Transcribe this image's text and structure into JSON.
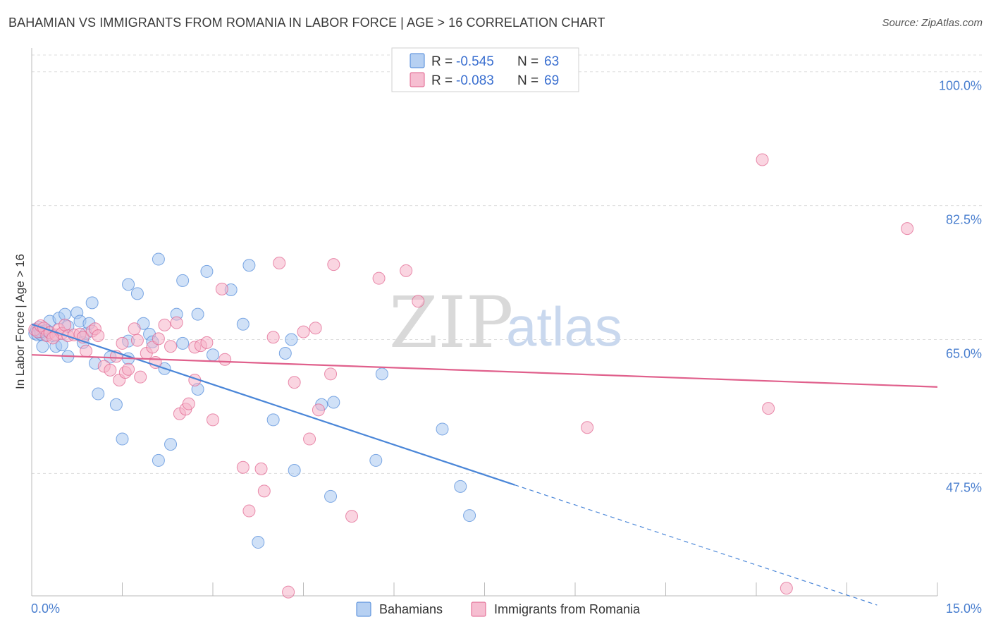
{
  "header": {
    "title": "BAHAMIAN VS IMMIGRANTS FROM ROMANIA IN LABOR FORCE | AGE > 16 CORRELATION CHART",
    "source": "Source: ZipAtlas.com"
  },
  "watermark": {
    "zip": "ZIP",
    "atlas": "atlas"
  },
  "legend_top": {
    "rows": [
      {
        "r_label": "R = ",
        "r_value": "-0.545",
        "n_label": "N = ",
        "n_value": "63",
        "color": "#a9c8f0"
      },
      {
        "r_label": "R = ",
        "r_value": "-0.083",
        "n_label": "N = ",
        "n_value": "69",
        "color": "#f5b3c9"
      }
    ]
  },
  "legend_bottom": {
    "items": [
      {
        "label": "Bahamians",
        "color": "#a9c8f0"
      },
      {
        "label": "Immigrants from Romania",
        "color": "#f5b3c9"
      }
    ]
  },
  "chart_data": {
    "type": "scatter",
    "title": "BAHAMIAN VS IMMIGRANTS FROM ROMANIA IN LABOR FORCE | AGE > 16 CORRELATION CHART",
    "xlabel": "",
    "ylabel": "In Labor Force | Age > 16",
    "xlim": [
      0,
      15
    ],
    "ylim": [
      31.5,
      102
    ],
    "x_tick_labels": [
      "0.0%",
      "15.0%"
    ],
    "y_ticks": [
      47.5,
      65.0,
      82.5,
      100.0
    ],
    "y_tick_labels": [
      "47.5%",
      "65.0%",
      "82.5%",
      "100.0%"
    ],
    "grid": true,
    "legend_position": "top-center",
    "series": [
      {
        "name": "Bahamians",
        "color": "#4a86d8",
        "fill": "#a9c8f0",
        "r": -0.545,
        "n": 63,
        "trend": {
          "x0": 0.0,
          "y0": 67.0,
          "x1": 8.0,
          "y1": 46.0,
          "dash_to_x": 14.0,
          "dash_to_y": 30.3
        },
        "points": [
          [
            0.05,
            65.8
          ],
          [
            0.08,
            66.3
          ],
          [
            0.1,
            65.6
          ],
          [
            0.12,
            66.6
          ],
          [
            0.15,
            65.7
          ],
          [
            0.18,
            64.1
          ],
          [
            0.2,
            66.1
          ],
          [
            0.25,
            65.6
          ],
          [
            0.3,
            67.4
          ],
          [
            0.35,
            65.5
          ],
          [
            0.4,
            64.1
          ],
          [
            0.45,
            67.8
          ],
          [
            0.5,
            64.3
          ],
          [
            0.55,
            68.3
          ],
          [
            0.6,
            62.8
          ],
          [
            0.6,
            66.7
          ],
          [
            0.75,
            68.5
          ],
          [
            0.8,
            67.4
          ],
          [
            0.85,
            64.6
          ],
          [
            0.9,
            65.8
          ],
          [
            0.95,
            67.1
          ],
          [
            1.0,
            69.8
          ],
          [
            1.05,
            61.9
          ],
          [
            1.1,
            57.9
          ],
          [
            1.3,
            62.7
          ],
          [
            1.4,
            56.5
          ],
          [
            1.5,
            52.0
          ],
          [
            1.6,
            64.8
          ],
          [
            1.6,
            62.5
          ],
          [
            1.6,
            72.2
          ],
          [
            1.75,
            71.0
          ],
          [
            1.85,
            67.1
          ],
          [
            1.95,
            65.7
          ],
          [
            2.0,
            64.7
          ],
          [
            2.1,
            49.2
          ],
          [
            2.1,
            75.5
          ],
          [
            2.2,
            61.2
          ],
          [
            2.3,
            51.3
          ],
          [
            2.4,
            68.3
          ],
          [
            2.5,
            64.5
          ],
          [
            2.5,
            72.7
          ],
          [
            2.75,
            68.3
          ],
          [
            2.75,
            58.5
          ],
          [
            2.9,
            73.9
          ],
          [
            3.0,
            63.0
          ],
          [
            3.3,
            71.5
          ],
          [
            3.5,
            67.0
          ],
          [
            3.6,
            74.7
          ],
          [
            3.75,
            38.5
          ],
          [
            4.0,
            54.5
          ],
          [
            4.2,
            63.2
          ],
          [
            4.35,
            47.9
          ],
          [
            4.3,
            65.0
          ],
          [
            4.8,
            56.5
          ],
          [
            4.95,
            44.5
          ],
          [
            5.0,
            56.8
          ],
          [
            5.7,
            49.2
          ],
          [
            5.8,
            60.5
          ],
          [
            6.8,
            53.3
          ],
          [
            7.1,
            45.8
          ],
          [
            7.25,
            42.0
          ],
          [
            0.15,
            66.0
          ],
          [
            0.25,
            66.2
          ]
        ]
      },
      {
        "name": "Immigrants from Romania",
        "color": "#e0608c",
        "fill": "#f5b3c9",
        "r": -0.083,
        "n": 69,
        "trend": {
          "x0": 0.0,
          "y0": 63.0,
          "x1": 15.0,
          "y1": 58.8
        },
        "points": [
          [
            0.05,
            66.3
          ],
          [
            0.1,
            66.0
          ],
          [
            0.15,
            66.8
          ],
          [
            0.2,
            66.5
          ],
          [
            0.25,
            65.5
          ],
          [
            0.3,
            65.9
          ],
          [
            0.4,
            65.6
          ],
          [
            0.45,
            66.3
          ],
          [
            0.5,
            65.8
          ],
          [
            0.55,
            66.9
          ],
          [
            0.6,
            65.5
          ],
          [
            0.7,
            65.6
          ],
          [
            0.8,
            65.7
          ],
          [
            0.85,
            65.3
          ],
          [
            0.9,
            63.5
          ],
          [
            1.0,
            66.1
          ],
          [
            1.05,
            66.4
          ],
          [
            1.1,
            65.5
          ],
          [
            1.2,
            61.5
          ],
          [
            1.3,
            61.0
          ],
          [
            1.4,
            62.8
          ],
          [
            1.45,
            59.7
          ],
          [
            1.5,
            64.5
          ],
          [
            1.55,
            60.7
          ],
          [
            1.6,
            61.1
          ],
          [
            1.7,
            66.4
          ],
          [
            1.75,
            64.9
          ],
          [
            1.8,
            60.1
          ],
          [
            1.9,
            63.2
          ],
          [
            2.0,
            64.0
          ],
          [
            2.05,
            62.0
          ],
          [
            2.1,
            65.1
          ],
          [
            2.2,
            66.9
          ],
          [
            2.3,
            64.1
          ],
          [
            2.4,
            67.2
          ],
          [
            2.45,
            55.3
          ],
          [
            2.55,
            55.9
          ],
          [
            2.6,
            56.6
          ],
          [
            2.7,
            64.0
          ],
          [
            2.7,
            59.7
          ],
          [
            2.8,
            64.2
          ],
          [
            2.9,
            64.6
          ],
          [
            3.0,
            54.5
          ],
          [
            3.15,
            71.6
          ],
          [
            3.2,
            62.4
          ],
          [
            3.5,
            48.3
          ],
          [
            3.6,
            42.6
          ],
          [
            3.8,
            48.1
          ],
          [
            3.85,
            45.2
          ],
          [
            4.0,
            65.3
          ],
          [
            4.1,
            75.0
          ],
          [
            4.25,
            32.0
          ],
          [
            4.35,
            59.4
          ],
          [
            4.5,
            66.0
          ],
          [
            4.6,
            52.0
          ],
          [
            4.7,
            66.5
          ],
          [
            4.75,
            55.8
          ],
          [
            4.95,
            60.5
          ],
          [
            5.0,
            74.8
          ],
          [
            5.3,
            41.9
          ],
          [
            5.75,
            73.0
          ],
          [
            6.2,
            74.0
          ],
          [
            6.4,
            70.0
          ],
          [
            9.2,
            53.5
          ],
          [
            12.1,
            88.5
          ],
          [
            12.2,
            56.0
          ],
          [
            12.5,
            32.5
          ],
          [
            14.5,
            79.5
          ],
          [
            0.35,
            65.2
          ]
        ]
      }
    ]
  }
}
